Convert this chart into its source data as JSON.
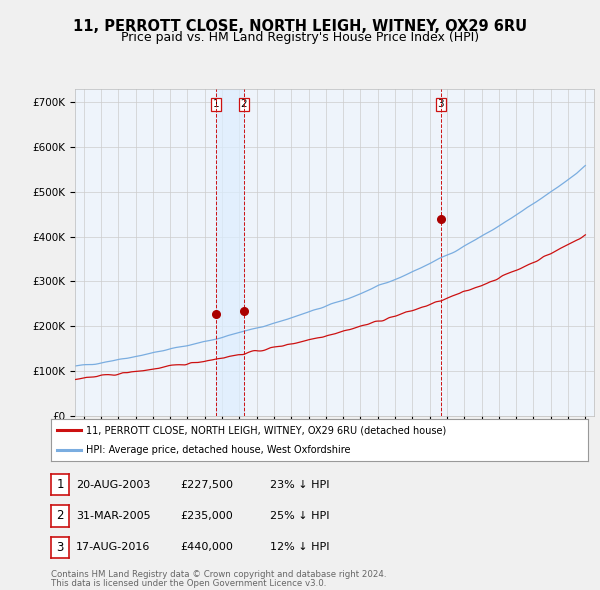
{
  "title": "11, PERROTT CLOSE, NORTH LEIGH, WITNEY, OX29 6RU",
  "subtitle": "Price paid vs. HM Land Registry's House Price Index (HPI)",
  "xlim_start": 1995.5,
  "xlim_end": 2025.5,
  "ylim": [
    0,
    730000
  ],
  "yticks": [
    0,
    100000,
    200000,
    300000,
    400000,
    500000,
    600000,
    700000
  ],
  "ytick_labels": [
    "£0",
    "£100K",
    "£200K",
    "£300K",
    "£400K",
    "£500K",
    "£600K",
    "£700K"
  ],
  "line_color_hpi": "#7aade0",
  "line_color_price": "#cc1111",
  "transaction_color": "#aa0000",
  "vline_color": "#cc1111",
  "shade_color": "#ddeeff",
  "background_color": "#f0f0f0",
  "plot_bg_color": "#eef4fb",
  "grid_color": "#cccccc",
  "transactions": [
    {
      "label": "1",
      "date": "20-AUG-2003",
      "x": 2003.64,
      "price": 227500,
      "pct": "23%",
      "dir": "↓"
    },
    {
      "label": "2",
      "date": "31-MAR-2005",
      "x": 2005.25,
      "price": 235000,
      "pct": "25%",
      "dir": "↓"
    },
    {
      "label": "3",
      "date": "17-AUG-2016",
      "x": 2016.64,
      "price": 440000,
      "pct": "12%",
      "dir": "↓"
    }
  ],
  "legend_price_label": "11, PERROTT CLOSE, NORTH LEIGH, WITNEY, OX29 6RU (detached house)",
  "legend_hpi_label": "HPI: Average price, detached house, West Oxfordshire",
  "footer_line1": "Contains HM Land Registry data © Crown copyright and database right 2024.",
  "footer_line2": "This data is licensed under the Open Government Licence v3.0.",
  "title_fontsize": 10.5,
  "subtitle_fontsize": 9
}
